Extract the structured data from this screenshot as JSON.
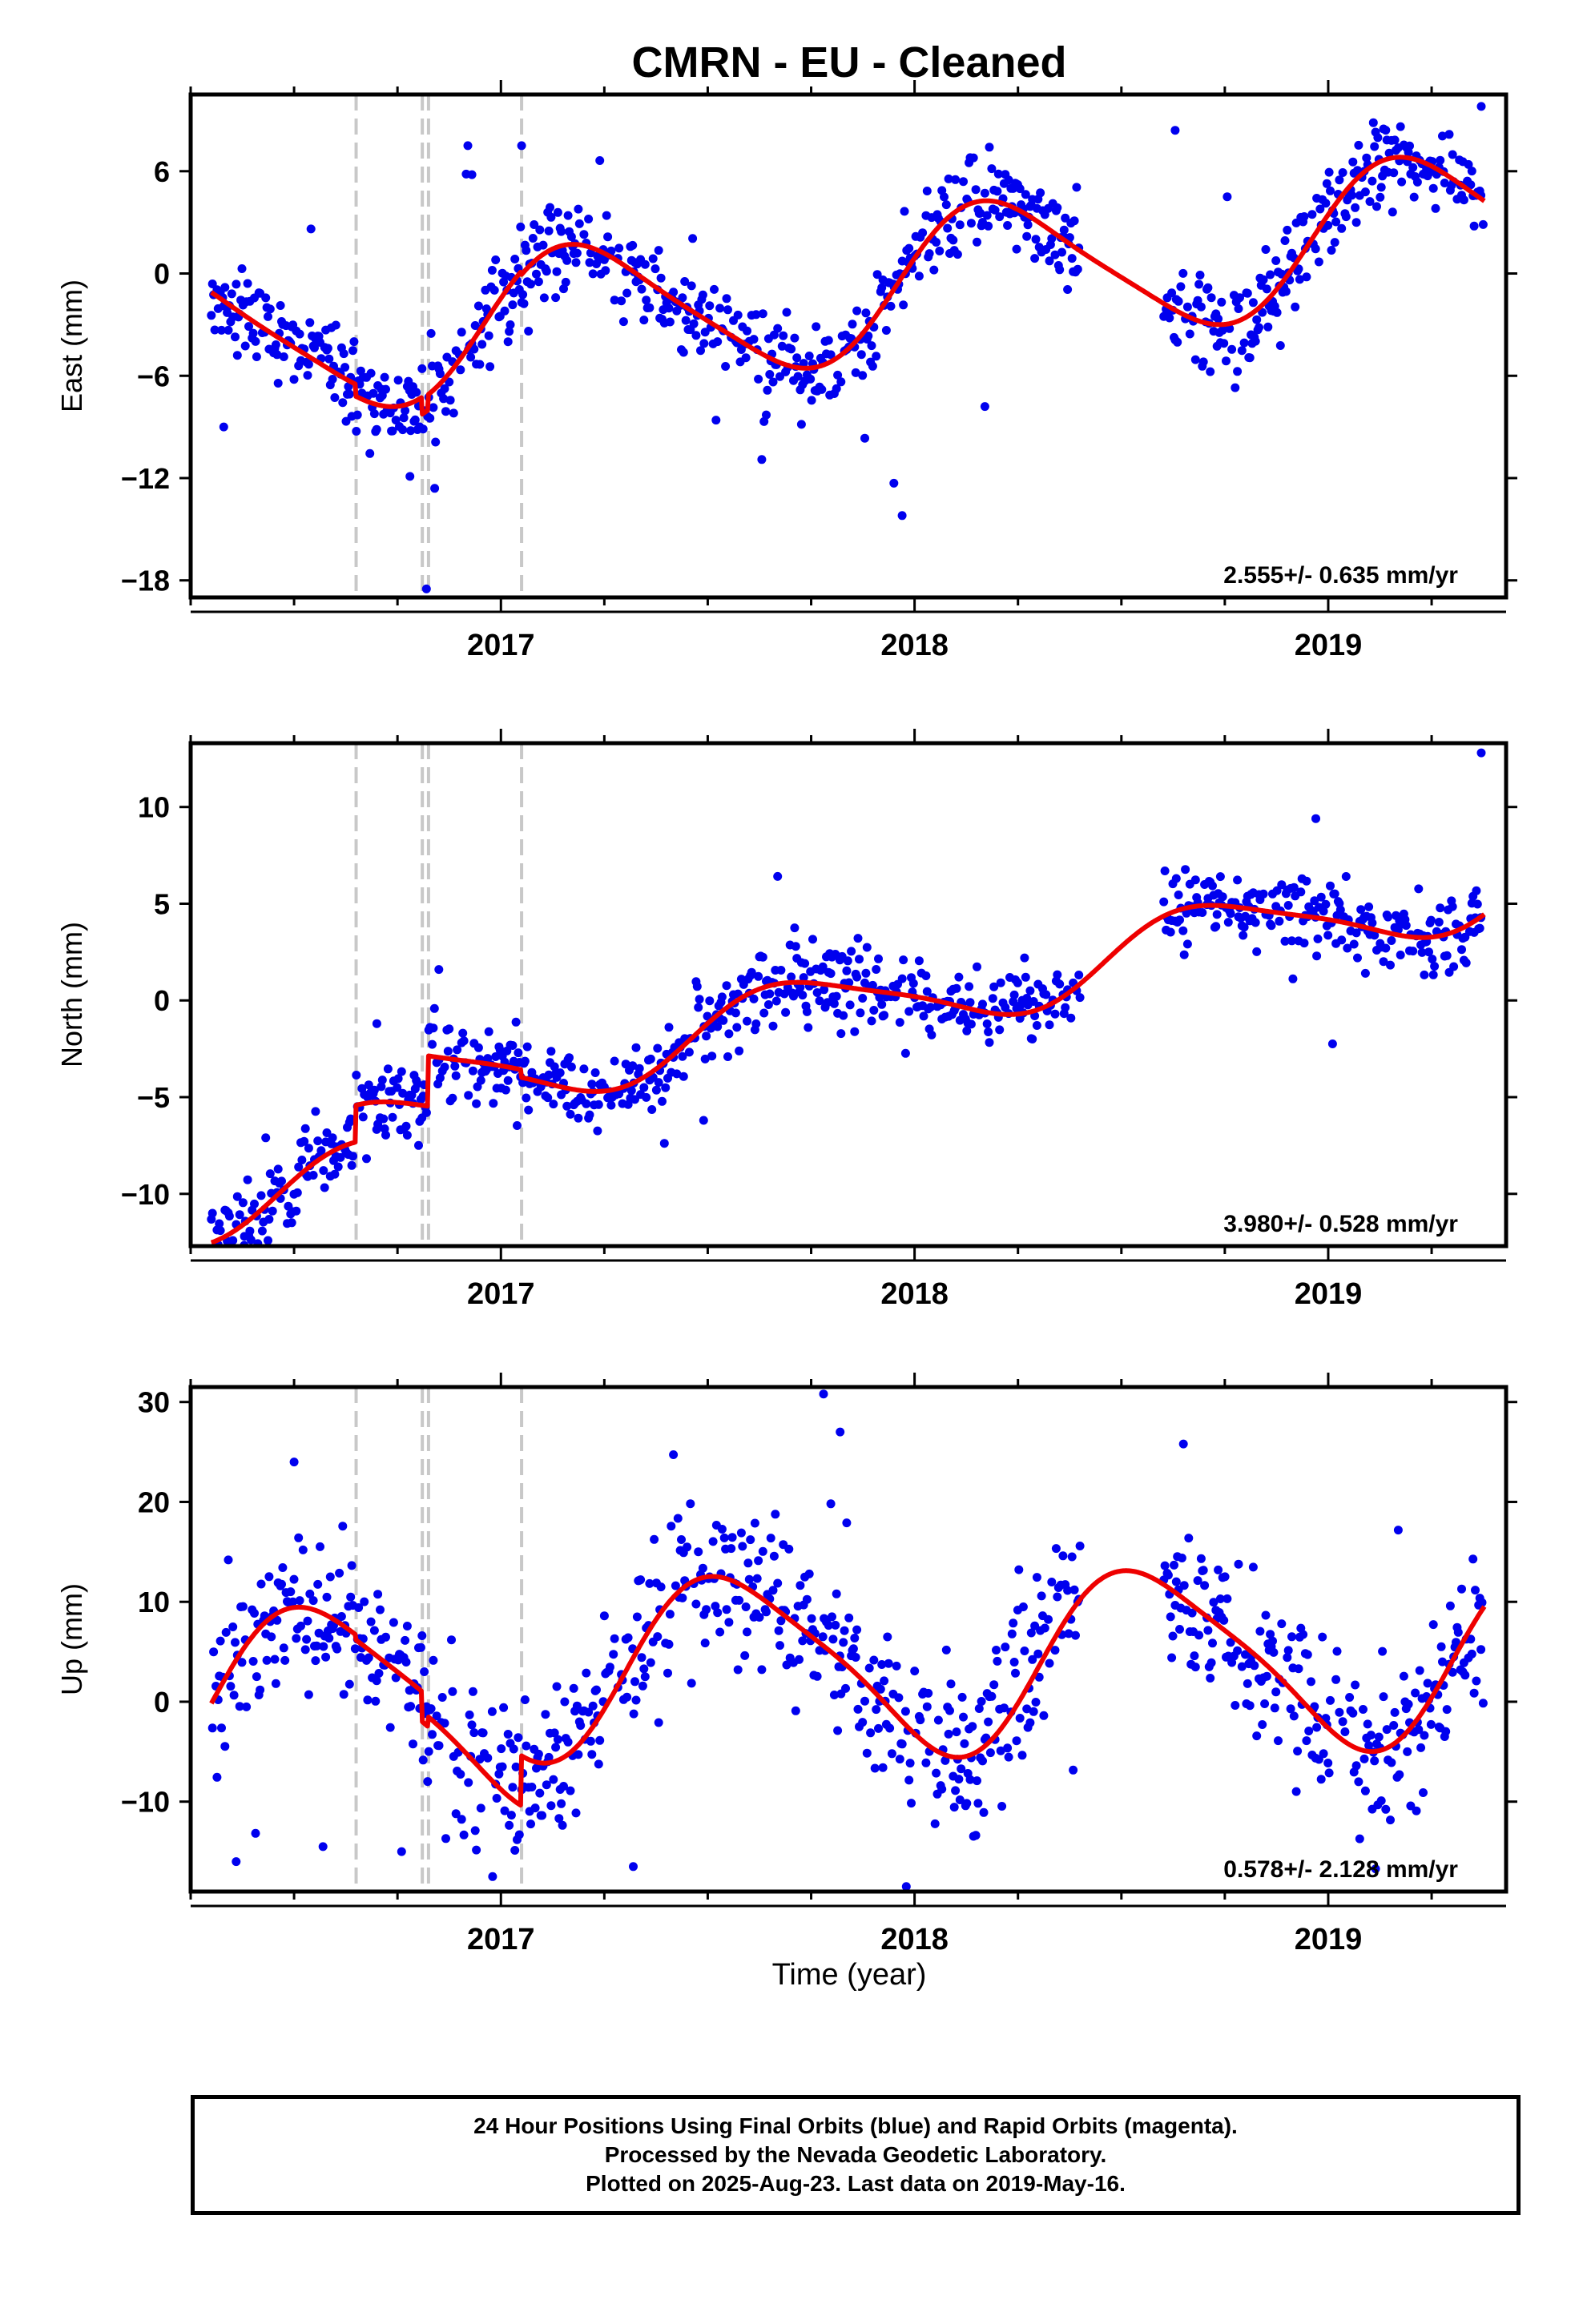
{
  "chart_data": {
    "type": "scatter",
    "title": "CMRN  - EU - Cleaned",
    "xlabel": "Time (year)",
    "x_range": [
      2016.25,
      2019.43
    ],
    "x_ticks": [
      2017,
      2018,
      2019
    ],
    "x_tick_labels": [
      "2017",
      "2018",
      "2019"
    ],
    "offset_lines_x": [
      2016.65,
      2016.81,
      2016.825,
      2017.05
    ],
    "colors": {
      "points": "#0000ee",
      "model": "#ee0000",
      "offset_lines": "#c8c8c8"
    },
    "panels": [
      {
        "id": "east",
        "ylabel": "East (mm)",
        "ylim": [
          -19,
          10.5
        ],
        "y_ticks": [
          6,
          0,
          -6,
          -12,
          -18
        ],
        "y_tick_labels": [
          "6",
          "0",
          "−6",
          "−12",
          "−18"
        ],
        "rate": "2.555+/- 0.635 mm/yr",
        "model": {
          "velocity": 2.555,
          "annual": [
            1.2,
            4.0
          ],
          "semiannual": [
            0.3,
            0.6
          ],
          "segments": [
            [
              2016.3,
              2016.65,
              0.4
            ],
            [
              2016.65,
              2016.81,
              -0.3
            ],
            [
              2016.81,
              2016.825,
              -1.3
            ],
            [
              2016.825,
              2017.05,
              -0.4
            ],
            [
              2017.05,
              2019.38,
              -0.6
            ]
          ]
        },
        "noise": 1.3,
        "outliers": [
          [
            2016.33,
            -9.0
          ],
          [
            2016.92,
            7.5
          ],
          [
            2016.93,
            5.8
          ],
          [
            2017.05,
            7.5
          ],
          [
            2017.52,
            -8.6
          ],
          [
            2017.95,
            -12.3
          ],
          [
            2017.97,
            -14.2
          ],
          [
            2018.63,
            8.4
          ],
          [
            2016.82,
            -18.5
          ],
          [
            2016.84,
            -12.6
          ],
          [
            2016.78,
            -11.9
          ],
          [
            2018.17,
            -7.8
          ],
          [
            2019.37,
            9.8
          ]
        ]
      },
      {
        "id": "north",
        "ylabel": "North (mm)",
        "ylim": [
          -12.7,
          13.3
        ],
        "y_ticks": [
          10,
          5,
          0,
          -5,
          -10
        ],
        "y_tick_labels": [
          "10",
          "5",
          "0",
          "−5",
          "−10"
        ],
        "rate": "3.980+/- 0.528 mm/yr",
        "model": {
          "velocity": 3.98,
          "annual": [
            -0.3,
            -1.8
          ],
          "semiannual": [
            0.2,
            0.3
          ],
          "segments": [
            [
              2016.3,
              2016.65,
              -3.8
            ],
            [
              2016.65,
              2016.81,
              -1.9
            ],
            [
              2016.81,
              2016.825,
              -1.9
            ],
            [
              2016.825,
              2017.05,
              0.7
            ],
            [
              2017.05,
              2019.38,
              0.3
            ]
          ]
        },
        "noise": 1.0,
        "outliers": [
          [
            2019.37,
            12.8
          ],
          [
            2017.49,
            -6.2
          ],
          [
            2016.85,
            1.6
          ],
          [
            2016.7,
            -1.2
          ],
          [
            2018.97,
            9.4
          ],
          [
            2016.38,
            -12.2
          ]
        ]
      },
      {
        "id": "up",
        "ylabel": "Up (mm)",
        "ylim": [
          -19,
          31.5
        ],
        "y_ticks": [
          30,
          20,
          10,
          0,
          -10
        ],
        "y_tick_labels": [
          "30",
          "20",
          "10",
          "0",
          "−10"
        ],
        "rate": "0.578+/- 2.128 mm/yr",
        "model": {
          "velocity": 0.578,
          "annual": [
            -8.0,
            -3.5
          ],
          "semiannual": [
            0.8,
            -1.4
          ],
          "segments": [
            [
              2016.3,
              2016.65,
              1.5
            ],
            [
              2016.65,
              2016.81,
              1.0
            ],
            [
              2016.81,
              2016.825,
              -2.0
            ],
            [
              2016.825,
              2017.05,
              -1.0
            ],
            [
              2017.05,
              2019.38,
              4.0
            ]
          ]
        },
        "noise": 4.0,
        "outliers": [
          [
            2017.78,
            30.8
          ],
          [
            2017.82,
            27.0
          ],
          [
            2016.5,
            24.0
          ],
          [
            2018.65,
            25.8
          ],
          [
            2017.98,
            -18.5
          ],
          [
            2016.98,
            -17.5
          ],
          [
            2016.76,
            -15.0
          ],
          [
            2016.57,
            -14.5
          ],
          [
            2017.32,
            -16.5
          ],
          [
            2016.36,
            -16.0
          ]
        ]
      }
    ]
  },
  "footer": {
    "line1": "24 Hour Positions Using Final Orbits (blue) and Rapid Orbits (magenta).",
    "line2": "Processed by the Nevada Geodetic Laboratory.",
    "line3": "Plotted on 2025-Aug-23. Last data on 2019-May-16."
  }
}
